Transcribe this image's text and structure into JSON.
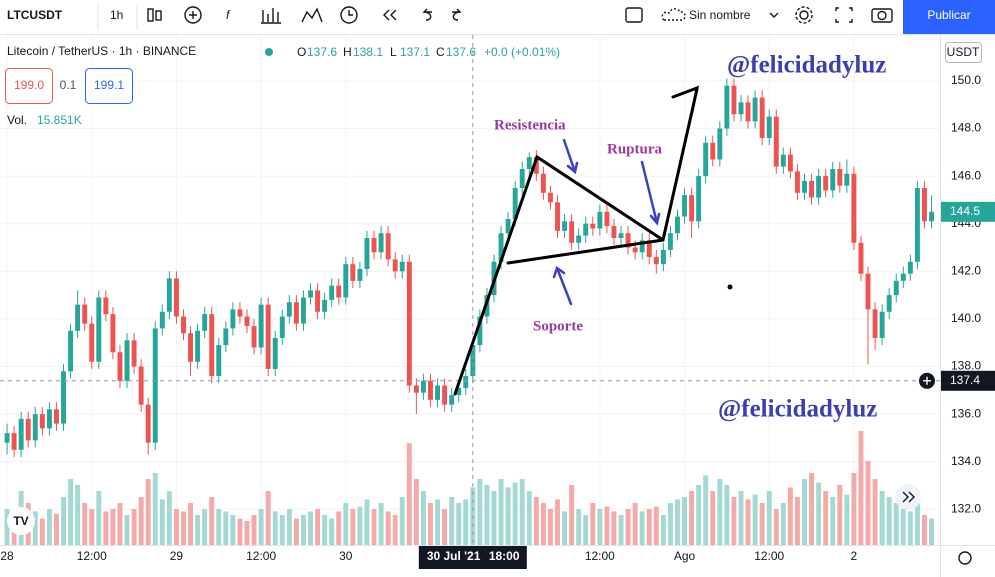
{
  "toolbar": {
    "symbol": "LTCUSDT",
    "interval": "1h",
    "layout_name": "Sin nombre",
    "publish": "Publicar"
  },
  "legend": {
    "title": "Litecoin / TetherUS · 1h · BINANCE",
    "ohlc_labels": [
      "O",
      "H",
      "L",
      "C"
    ],
    "ohlc": [
      137.6,
      138.1,
      137.1,
      137.6
    ],
    "change": "+0.0 (+0.01%)",
    "sell": "199.0",
    "spread": "0.1",
    "buy": "199.1",
    "volume_label": "Vol.",
    "volume": "15.851K"
  },
  "annotations": {
    "watermark_top": "@felicidadyluz",
    "watermark_bottom": "@felicidadyluz",
    "resistance": "Resistencia",
    "support": "Soporte",
    "breakout": "Ruptura"
  },
  "chart_data": {
    "type": "candlestick",
    "currency": "USDT",
    "candles": [
      [
        134.8,
        135.6,
        134.3,
        135.2
      ],
      [
        135.2,
        135.5,
        134.2,
        134.5
      ],
      [
        134.5,
        136.1,
        134.2,
        135.8
      ],
      [
        135.8,
        136.1,
        134.6,
        134.9
      ],
      [
        134.9,
        136.3,
        134.6,
        136.0
      ],
      [
        136.0,
        136.3,
        135.1,
        135.4
      ],
      [
        135.4,
        136.5,
        135.1,
        136.2
      ],
      [
        136.2,
        136.5,
        135.3,
        135.6
      ],
      [
        135.6,
        138.1,
        135.3,
        137.8
      ],
      [
        137.8,
        139.8,
        137.5,
        139.5
      ],
      [
        139.5,
        141.2,
        139.2,
        140.6
      ],
      [
        140.6,
        140.9,
        139.5,
        139.8
      ],
      [
        139.8,
        140.1,
        137.9,
        138.2
      ],
      [
        138.2,
        141.2,
        137.9,
        140.9
      ],
      [
        140.9,
        141.2,
        139.9,
        140.2
      ],
      [
        140.2,
        140.5,
        138.3,
        138.6
      ],
      [
        138.6,
        138.9,
        137.1,
        137.4
      ],
      [
        137.4,
        139.4,
        137.1,
        139.1
      ],
      [
        139.1,
        139.4,
        137.7,
        138.0
      ],
      [
        138.0,
        138.3,
        136.1,
        136.4
      ],
      [
        136.4,
        136.7,
        134.3,
        134.8
      ],
      [
        134.8,
        139.9,
        134.5,
        139.6
      ],
      [
        139.6,
        140.6,
        139.3,
        140.3
      ],
      [
        140.3,
        142.0,
        140.0,
        141.7
      ],
      [
        141.7,
        142.0,
        139.8,
        140.1
      ],
      [
        140.1,
        140.4,
        139.1,
        139.4
      ],
      [
        139.4,
        139.7,
        137.6,
        138.2
      ],
      [
        138.2,
        139.8,
        137.9,
        139.5
      ],
      [
        139.5,
        140.5,
        139.2,
        140.2
      ],
      [
        140.2,
        140.5,
        137.3,
        137.6
      ],
      [
        137.6,
        139.2,
        137.3,
        138.9
      ],
      [
        138.9,
        139.9,
        138.6,
        139.6
      ],
      [
        139.6,
        140.7,
        139.3,
        140.4
      ],
      [
        140.4,
        140.7,
        139.8,
        140.1
      ],
      [
        140.1,
        140.4,
        139.4,
        139.7
      ],
      [
        139.7,
        140.0,
        138.5,
        138.8
      ],
      [
        138.8,
        140.9,
        138.5,
        140.6
      ],
      [
        140.6,
        140.9,
        137.6,
        137.9
      ],
      [
        137.9,
        139.5,
        137.6,
        139.2
      ],
      [
        139.2,
        140.4,
        138.9,
        140.1
      ],
      [
        140.1,
        141.0,
        139.8,
        140.7
      ],
      [
        140.7,
        141.0,
        139.5,
        139.8
      ],
      [
        139.8,
        141.2,
        139.5,
        140.9
      ],
      [
        140.9,
        141.5,
        140.6,
        141.2
      ],
      [
        141.2,
        141.5,
        140.0,
        140.3
      ],
      [
        140.3,
        141.1,
        140.0,
        140.8
      ],
      [
        140.8,
        141.7,
        140.5,
        141.4
      ],
      [
        141.4,
        141.7,
        140.6,
        140.9
      ],
      [
        140.9,
        142.6,
        140.6,
        142.3
      ],
      [
        142.3,
        142.6,
        141.3,
        141.6
      ],
      [
        141.6,
        142.4,
        141.3,
        142.1
      ],
      [
        142.1,
        143.7,
        141.8,
        143.4
      ],
      [
        143.4,
        143.7,
        142.5,
        142.8
      ],
      [
        142.8,
        143.9,
        142.5,
        143.6
      ],
      [
        143.6,
        143.9,
        142.2,
        142.5
      ],
      [
        142.5,
        142.8,
        141.7,
        142.0
      ],
      [
        142.0,
        142.7,
        141.7,
        142.4
      ],
      [
        142.4,
        142.7,
        136.9,
        137.2
      ],
      [
        137.2,
        137.5,
        136.0,
        136.9
      ],
      [
        136.9,
        137.7,
        136.6,
        137.4
      ],
      [
        137.4,
        137.7,
        136.3,
        136.6
      ],
      [
        136.6,
        137.5,
        136.3,
        137.2
      ],
      [
        137.2,
        137.5,
        136.1,
        136.4
      ],
      [
        136.4,
        137.1,
        136.1,
        136.8
      ],
      [
        136.8,
        137.4,
        136.5,
        137.1
      ],
      [
        137.1,
        137.9,
        136.8,
        137.6
      ],
      [
        137.6,
        139.2,
        137.3,
        138.9
      ],
      [
        138.9,
        140.4,
        138.6,
        140.1
      ],
      [
        140.1,
        141.3,
        139.8,
        141.0
      ],
      [
        141.0,
        142.7,
        140.7,
        142.4
      ],
      [
        142.4,
        143.9,
        142.1,
        143.6
      ],
      [
        143.6,
        144.5,
        143.3,
        144.2
      ],
      [
        144.2,
        145.8,
        143.9,
        145.5
      ],
      [
        145.5,
        146.6,
        145.2,
        146.3
      ],
      [
        146.3,
        147.0,
        146.0,
        146.8
      ],
      [
        146.8,
        147.1,
        145.8,
        146.1
      ],
      [
        146.1,
        146.4,
        145.0,
        145.3
      ],
      [
        145.3,
        145.6,
        144.6,
        144.9
      ],
      [
        144.9,
        145.2,
        143.4,
        143.7
      ],
      [
        143.7,
        144.4,
        143.4,
        144.1
      ],
      [
        144.1,
        144.4,
        142.9,
        143.2
      ],
      [
        143.2,
        143.8,
        142.9,
        143.5
      ],
      [
        143.5,
        144.3,
        143.2,
        144.0
      ],
      [
        144.0,
        144.3,
        143.5,
        143.8
      ],
      [
        143.8,
        144.8,
        143.5,
        144.5
      ],
      [
        144.5,
        144.8,
        143.6,
        143.9
      ],
      [
        143.9,
        144.2,
        143.1,
        143.4
      ],
      [
        143.4,
        143.9,
        143.1,
        143.6
      ],
      [
        143.6,
        143.9,
        142.7,
        143.0
      ],
      [
        143.0,
        143.3,
        142.5,
        142.8
      ],
      [
        142.8,
        143.6,
        142.5,
        143.3
      ],
      [
        143.3,
        143.6,
        142.3,
        142.6
      ],
      [
        142.6,
        142.9,
        141.9,
        142.3
      ],
      [
        142.3,
        143.2,
        142.0,
        142.9
      ],
      [
        142.9,
        143.9,
        142.6,
        143.6
      ],
      [
        143.6,
        144.6,
        143.3,
        144.3
      ],
      [
        144.3,
        145.5,
        144.0,
        145.2
      ],
      [
        145.2,
        145.5,
        143.4,
        144.1
      ],
      [
        144.1,
        146.3,
        143.8,
        146.0
      ],
      [
        146.0,
        147.7,
        145.7,
        147.4
      ],
      [
        147.4,
        147.7,
        146.4,
        146.7
      ],
      [
        146.7,
        148.3,
        146.4,
        148.0
      ],
      [
        148.0,
        150.1,
        147.7,
        149.8
      ],
      [
        149.8,
        150.1,
        148.3,
        148.6
      ],
      [
        148.6,
        149.4,
        148.3,
        149.1
      ],
      [
        149.1,
        149.4,
        148.0,
        148.3
      ],
      [
        148.3,
        149.6,
        148.0,
        149.3
      ],
      [
        149.3,
        149.6,
        147.3,
        147.6
      ],
      [
        147.6,
        148.8,
        147.3,
        148.5
      ],
      [
        148.5,
        148.8,
        146.1,
        146.4
      ],
      [
        146.4,
        147.2,
        146.1,
        146.9
      ],
      [
        146.9,
        147.2,
        145.9,
        146.2
      ],
      [
        146.2,
        146.5,
        145.0,
        145.3
      ],
      [
        145.3,
        146.1,
        145.0,
        145.8
      ],
      [
        145.8,
        146.1,
        144.8,
        145.1
      ],
      [
        145.1,
        146.3,
        144.8,
        146.0
      ],
      [
        146.0,
        146.3,
        145.1,
        145.4
      ],
      [
        145.4,
        146.6,
        145.1,
        146.3
      ],
      [
        146.3,
        146.6,
        145.3,
        145.6
      ],
      [
        145.6,
        146.7,
        145.3,
        146.1
      ],
      [
        146.1,
        146.4,
        142.9,
        143.2
      ],
      [
        143.2,
        143.5,
        141.6,
        141.9
      ],
      [
        141.9,
        142.2,
        138.1,
        140.4
      ],
      [
        140.4,
        140.7,
        138.7,
        139.2
      ],
      [
        139.2,
        140.6,
        138.9,
        140.3
      ],
      [
        140.3,
        141.3,
        140.0,
        141.0
      ],
      [
        141.0,
        141.9,
        140.7,
        141.6
      ],
      [
        141.6,
        142.2,
        141.3,
        141.9
      ],
      [
        141.9,
        142.7,
        141.6,
        142.4
      ],
      [
        142.4,
        145.8,
        142.1,
        145.5
      ],
      [
        145.5,
        145.8,
        143.8,
        144.1
      ],
      [
        144.1,
        145.2,
        143.8,
        144.5
      ]
    ],
    "volume": [
      30,
      25,
      45,
      35,
      28,
      22,
      30,
      26,
      40,
      55,
      50,
      35,
      30,
      45,
      28,
      30,
      35,
      25,
      30,
      40,
      55,
      60,
      38,
      45,
      30,
      28,
      35,
      25,
      30,
      40,
      30,
      28,
      25,
      22,
      20,
      25,
      30,
      45,
      28,
      25,
      30,
      22,
      25,
      28,
      30,
      25,
      22,
      28,
      35,
      30,
      32,
      38,
      30,
      35,
      28,
      25,
      40,
      85,
      55,
      45,
      35,
      38,
      30,
      40,
      35,
      38,
      48,
      55,
      50,
      45,
      55,
      48,
      52,
      55,
      45,
      40,
      35,
      30,
      38,
      28,
      50,
      30,
      25,
      35,
      30,
      32,
      28,
      25,
      30,
      35,
      28,
      30,
      32,
      25,
      35,
      38,
      40,
      45,
      50,
      58,
      45,
      55,
      50,
      40,
      45,
      38,
      42,
      35,
      45,
      30,
      35,
      48,
      40,
      55,
      60,
      52,
      45,
      40,
      50,
      42,
      60,
      95,
      70,
      55,
      45,
      40,
      35,
      30,
      28,
      35,
      25,
      22
    ],
    "vlim": [
      0,
      100
    ],
    "ylim": [
      130.5,
      151.93
    ],
    "yticks": [
      {
        "value": 132,
        "label": "132.0"
      },
      {
        "value": 134,
        "label": "134.0"
      },
      {
        "value": 136,
        "label": "136.0"
      },
      {
        "value": 138,
        "label": "138.0"
      },
      {
        "value": 140,
        "label": "140.0"
      },
      {
        "value": 142,
        "label": "142.0"
      },
      {
        "value": 144,
        "label": "144.0"
      },
      {
        "value": 146,
        "label": "146.0"
      },
      {
        "value": 148,
        "label": "148.0"
      },
      {
        "value": 150,
        "label": "150.0"
      }
    ],
    "xlim": [
      -1,
      132.2
    ],
    "xticks": [
      {
        "value": 0,
        "label": "28"
      },
      {
        "value": 12,
        "label": "12:00"
      },
      {
        "value": 24,
        "label": "29"
      },
      {
        "value": 36,
        "label": "12:00"
      },
      {
        "value": 48,
        "label": "30"
      },
      {
        "value": 84,
        "label": "12:00"
      },
      {
        "value": 96,
        "label": "Ago"
      },
      {
        "value": 108,
        "label": "12:00"
      },
      {
        "value": 120,
        "label": "2"
      }
    ],
    "crosshair": {
      "x": 66,
      "date": "30 Jul '21",
      "time": "18:00",
      "price": 137.4
    },
    "up_color": "#26a69a",
    "down_color": "#ef5350",
    "up_volume_color": "#a3d9d3",
    "down_volume_color": "#f5aaa9",
    "grid": true
  }
}
